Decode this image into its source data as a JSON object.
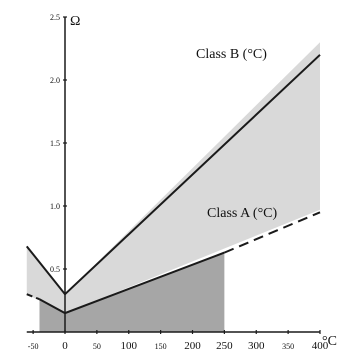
{
  "chart_data": {
    "type": "line",
    "title": "",
    "xlabel": "°C",
    "ylabel": "Ω",
    "xlim": [
      -60,
      400
    ],
    "ylim": [
      0,
      2.5
    ],
    "grid": false,
    "x_ticks_small": [
      {
        "value": -50,
        "label": "-50"
      },
      {
        "value": 50,
        "label": "50"
      },
      {
        "value": 150,
        "label": "150"
      },
      {
        "value": 350,
        "label": "350"
      }
    ],
    "x_ticks_large": [
      {
        "value": 0,
        "label": "0"
      },
      {
        "value": 100,
        "label": "100"
      },
      {
        "value": 200,
        "label": "200"
      },
      {
        "value": 250,
        "label": "250"
      },
      {
        "value": 300,
        "label": "300"
      },
      {
        "value": 400,
        "label": "400"
      }
    ],
    "y_ticks": [
      {
        "value": 0.5,
        "label": "0.5"
      },
      {
        "value": 1.0,
        "label": "1.0"
      },
      {
        "value": 1.5,
        "label": "1.5"
      },
      {
        "value": 2.0,
        "label": "2.0"
      },
      {
        "value": 2.5,
        "label": "2.5"
      }
    ],
    "series": [
      {
        "name": "Class B (°C)",
        "solid": [
          [
            -60,
            0.68
          ],
          [
            0,
            0.3
          ],
          [
            400,
            2.2
          ]
        ],
        "band_top": [
          [
            -60,
            0.68
          ],
          [
            0,
            0.3
          ],
          [
            400,
            2.3
          ]
        ],
        "band_bottom": [
          [
            -60,
            0.3
          ],
          [
            0,
            0.15
          ],
          [
            400,
            0.97
          ]
        ]
      },
      {
        "name": "Class A (°C)",
        "solid": [
          [
            -40,
            0.26
          ],
          [
            0,
            0.15
          ],
          [
            250,
            0.63
          ]
        ],
        "dashed": [
          [
            -60,
            0.3
          ],
          [
            -40,
            0.26
          ]
        ],
        "dashed_end": [
          [
            250,
            0.63
          ],
          [
            400,
            0.95
          ]
        ],
        "band_top": [
          [
            -40,
            0.26
          ],
          [
            0,
            0.15
          ],
          [
            250,
            0.63
          ]
        ],
        "band_bottom": [
          [
            -40,
            0
          ],
          [
            250,
            0
          ]
        ]
      }
    ],
    "colors": {
      "class_b_band": "#d9d9d9",
      "class_a_band": "#a6a6a6",
      "line": "#1a1a1a"
    }
  }
}
